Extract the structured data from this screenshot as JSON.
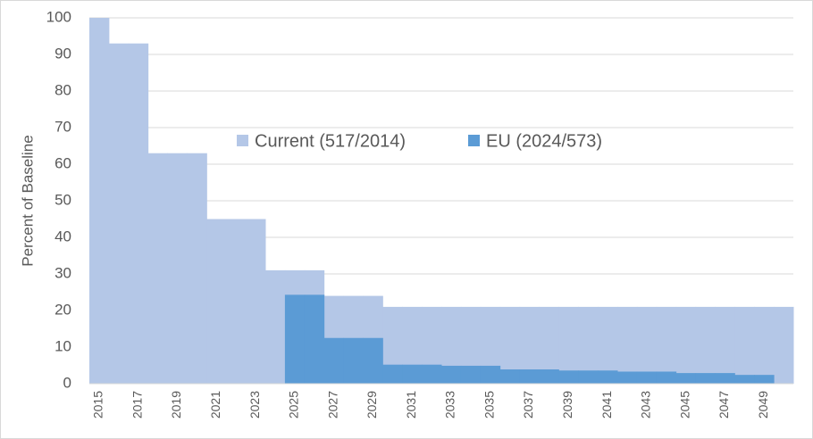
{
  "chart_data": {
    "type": "bar",
    "y_label": "Percent of Baseline",
    "categories": [
      "2015",
      null,
      "2017",
      null,
      "2019",
      null,
      "2021",
      null,
      "2023",
      null,
      "2025",
      null,
      "2027",
      null,
      "2029",
      null,
      "2031",
      null,
      "2033",
      null,
      "2035",
      null,
      "2037",
      null,
      "2039",
      null,
      "2041",
      null,
      "2043",
      null,
      "2045",
      null,
      "2047",
      null,
      "2049",
      null
    ],
    "series": [
      {
        "name": "Current (517/2014)",
        "color": "#b4c7e7",
        "values": [
          100,
          93,
          93,
          63,
          63,
          63,
          45,
          45,
          45,
          31,
          31,
          31,
          24,
          24,
          24,
          21,
          21,
          21,
          21,
          21,
          21,
          21,
          21,
          21,
          21,
          21,
          21,
          21,
          21,
          21,
          21,
          21,
          21,
          21,
          21,
          21
        ]
      },
      {
        "name": "EU (2024/573)",
        "color": "#5b9bd5",
        "values": [
          null,
          null,
          null,
          null,
          null,
          null,
          null,
          null,
          null,
          null,
          24.3,
          24.3,
          12.5,
          12.5,
          12.5,
          5.2,
          5.2,
          5.2,
          4.9,
          4.9,
          4.9,
          3.9,
          3.9,
          3.9,
          3.6,
          3.6,
          3.6,
          3.3,
          3.3,
          3.3,
          2.9,
          2.9,
          2.9,
          2.4,
          2.4,
          null
        ]
      }
    ],
    "ylim": [
      0,
      100
    ],
    "yticks": [
      0,
      10,
      20,
      30,
      40,
      50,
      60,
      70,
      80,
      90,
      100
    ],
    "grid": true
  }
}
